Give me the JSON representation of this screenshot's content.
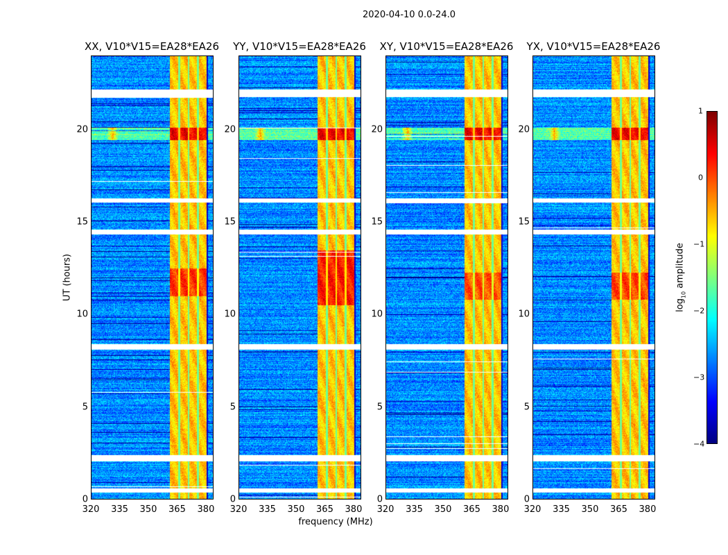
{
  "chart_data": {
    "type": "heatmap",
    "suptitle": "2020-04-10 0.0-24.0",
    "panels": [
      {
        "title": "XX, V10*V15=EA28*EA26",
        "rfi_peak_hours": [
          11.0,
          12.5
        ],
        "strength": 1.0
      },
      {
        "title": "YY, V10*V15=EA28*EA26",
        "rfi_peak_hours": [
          10.5,
          13.5
        ],
        "strength": 1.2
      },
      {
        "title": "XY, V10*V15=EA28*EA26",
        "rfi_peak_hours": [
          10.8,
          12.3
        ],
        "strength": 0.8
      },
      {
        "title": "YX, V10*V15=EA28*EA26",
        "rfi_peak_hours": [
          10.8,
          12.3
        ],
        "strength": 0.9
      }
    ],
    "xlabel": "frequency (MHz)",
    "ylabel": "UT (hours)",
    "xlim": [
      320,
      384
    ],
    "ylim": [
      0,
      24
    ],
    "xticks": [
      "320",
      "335",
      "350",
      "365",
      "380"
    ],
    "xtick_values": [
      320,
      335,
      350,
      365,
      380
    ],
    "yticks": [
      "0",
      "5",
      "10",
      "15",
      "20"
    ],
    "ytick_values": [
      0,
      5,
      10,
      15,
      20
    ],
    "rfi_band_mhz": [
      361,
      380.5
    ],
    "rfi_band_gaps_mhz": [
      366,
      371,
      376
    ],
    "flagged_hours": [
      [
        21.8,
        22.2
      ],
      [
        16.1,
        16.3
      ],
      [
        14.35,
        14.6
      ],
      [
        8.1,
        8.4
      ],
      [
        2.05,
        2.4
      ],
      [
        0.37,
        0.6
      ]
    ],
    "spike_row_hours": 19.8,
    "colorbar": {
      "label": "log10 amplitude",
      "label_main": "log",
      "label_sub": "10",
      "label_rest": " amplitude",
      "range": [
        -4,
        1
      ],
      "ticks": [
        "1",
        "0",
        "−1",
        "−2",
        "−3",
        "−4"
      ],
      "tick_values": [
        1,
        0,
        -1,
        -2,
        -3,
        -4
      ],
      "colormap": "jet"
    }
  }
}
